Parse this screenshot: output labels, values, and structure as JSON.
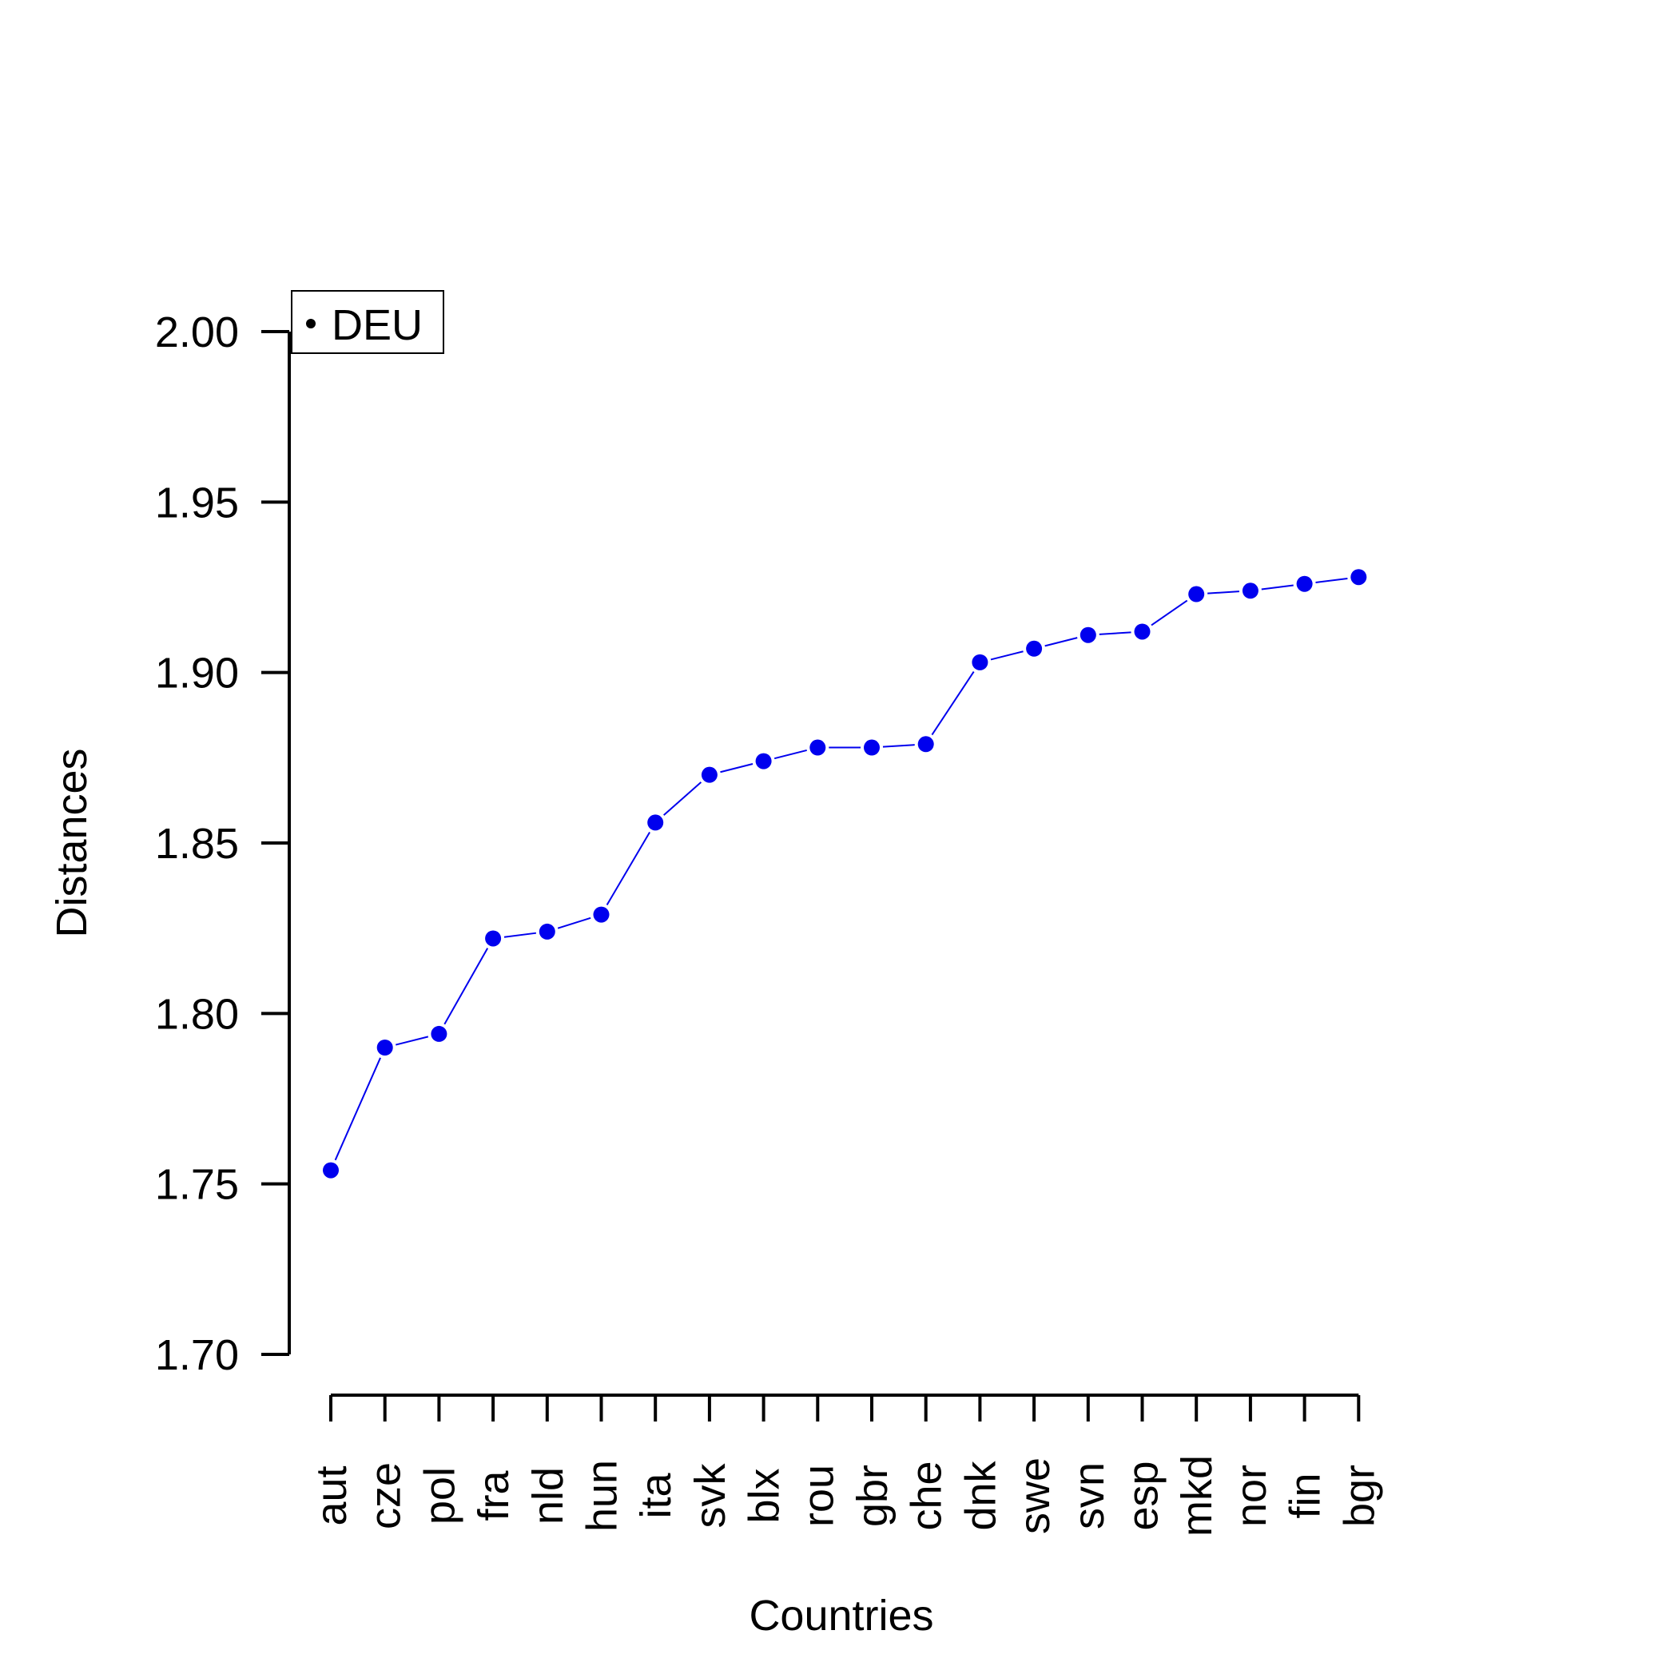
{
  "chart_data": {
    "type": "line",
    "xlabel": "Countries",
    "ylabel": "Distances",
    "ylim": [
      1.7,
      2.0
    ],
    "yticks": [
      "1.70",
      "1.75",
      "1.80",
      "1.85",
      "1.90",
      "1.95",
      "2.00"
    ],
    "ytick_values": [
      1.7,
      1.75,
      1.8,
      1.85,
      1.9,
      1.95,
      2.0
    ],
    "categories": [
      "aut",
      "cze",
      "pol",
      "fra",
      "nld",
      "hun",
      "ita",
      "svk",
      "blx",
      "rou",
      "gbr",
      "che",
      "dnk",
      "swe",
      "svn",
      "esp",
      "mkd",
      "nor",
      "fin",
      "bgr"
    ],
    "values": [
      1.754,
      1.79,
      1.794,
      1.822,
      1.824,
      1.829,
      1.856,
      1.87,
      1.874,
      1.878,
      1.878,
      1.879,
      1.903,
      1.907,
      1.911,
      1.912,
      1.923,
      1.924,
      1.926,
      1.928
    ],
    "legend": {
      "label": "DEU",
      "position": "top-left"
    },
    "series_color": "#0000ee",
    "grid": false
  }
}
